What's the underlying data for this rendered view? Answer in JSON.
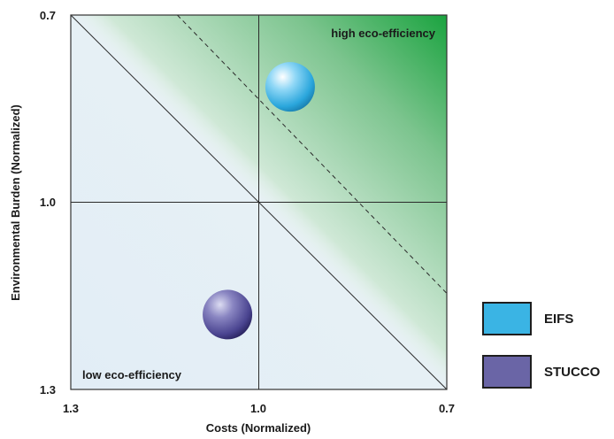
{
  "chart_data": {
    "type": "scatter",
    "title": "",
    "xlabel": "Costs (Normalized)",
    "ylabel": "Environmental Burden (Normalized)",
    "xlim": [
      1.3,
      0.7
    ],
    "ylim": [
      1.3,
      0.7
    ],
    "x_reversed": true,
    "y_reversed": true,
    "x_ticks": [
      "1.3",
      "1.0",
      "0.7"
    ],
    "y_ticks": [
      "0.7",
      "1.0",
      "1.3"
    ],
    "grid": false,
    "legend_placement": "right",
    "series": [
      {
        "name": "EIFS",
        "color": "#3ab4e4",
        "x": 0.95,
        "y": 0.815
      },
      {
        "name": "STUCCO",
        "color": "#6a65a6",
        "x": 1.05,
        "y": 1.18
      }
    ],
    "reference_lines": {
      "main_diagonal": {
        "from": [
          1.3,
          0.7
        ],
        "to": [
          0.7,
          1.3
        ],
        "style": "solid"
      },
      "offset_diagonal": {
        "from": [
          1.13,
          0.7
        ],
        "to": [
          0.7,
          1.146
        ],
        "style": "dashed"
      },
      "crosshair": {
        "x": 1.0,
        "y": 1.0
      }
    },
    "annotations": {
      "top_right": "high eco-efficiency",
      "bottom_left": "low eco-efficiency"
    },
    "colors": {
      "low_region": "#e6f0f8",
      "high_region": "#1aa33f",
      "legend_border": "#1e1e1e"
    }
  }
}
